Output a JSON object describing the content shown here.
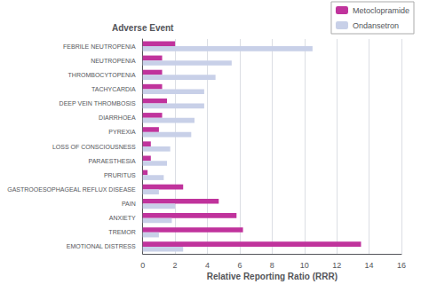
{
  "chart_data": {
    "type": "bar",
    "orientation": "horizontal",
    "categories": [
      "EMOTIONAL DISTRESS",
      "TREMOR",
      "ANXIETY",
      "PAIN",
      "GASTROOESOPHAGEAL REFLUX DISEASE",
      "PRURITUS",
      "PARAESTHESIA",
      "LOSS OF CONSCIOUSNESS",
      "PYREXIA",
      "DIARRHOEA",
      "DEEP VEIN THROMBOSIS",
      "TACHYCARDIA",
      "THROMBOCYTOPENIA",
      "NEUTROPENIA",
      "FEBRILE NEUTROPENIA"
    ],
    "series": [
      {
        "name": "Metoclopramide",
        "color": "#c0339c",
        "values": [
          13.5,
          6.2,
          5.8,
          4.7,
          2.5,
          0.3,
          0.5,
          0.5,
          1.0,
          1.2,
          1.5,
          1.2,
          1.2,
          1.2,
          2.0
        ]
      },
      {
        "name": "Ondansetron",
        "color": "#c8d0e8",
        "values": [
          2.5,
          1.0,
          1.8,
          2.0,
          1.0,
          1.3,
          1.5,
          1.7,
          3.0,
          3.2,
          3.8,
          3.8,
          4.5,
          5.5,
          10.5
        ]
      }
    ],
    "x_label": "Relative Reporting Ratio (RRR)",
    "y_label": "Adverse Event",
    "xlim": [
      0,
      16
    ],
    "xticks": [
      0,
      2,
      4,
      6,
      8,
      10,
      12,
      14,
      16
    ],
    "grid": true,
    "legend": "upper right"
  }
}
